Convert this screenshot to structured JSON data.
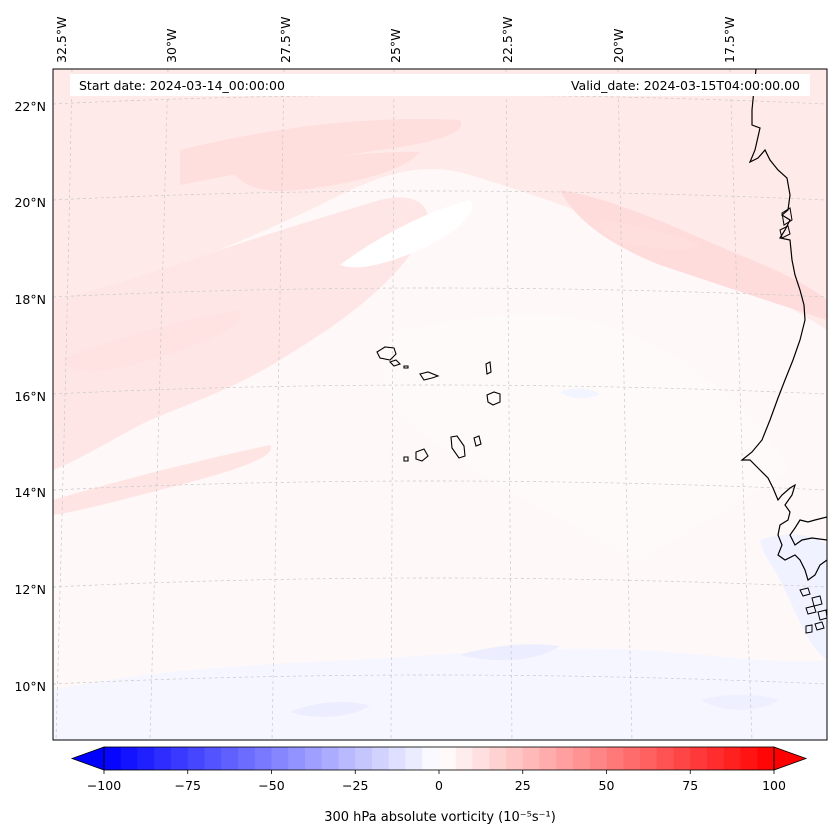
{
  "header": {
    "start_label": "Start date: 2024-03-14_00:00:00",
    "valid_label": "Valid_date: 2024-03-15T04:00:00.00"
  },
  "map": {
    "lon_labels": [
      "32.5°W",
      "30°W",
      "27.5°W",
      "25°W",
      "22.5°W",
      "20°W",
      "17.5°W"
    ],
    "lat_labels": [
      "22°N",
      "20°N",
      "18°N",
      "16°N",
      "14°N",
      "12°N",
      "10°N"
    ],
    "grid": true
  },
  "colorbar": {
    "label": "300 hPa absolute vorticity (10⁻⁵s⁻¹)",
    "ticks": [
      "−100",
      "−75",
      "−50",
      "−25",
      "0",
      "25",
      "50",
      "75",
      "100"
    ],
    "range": [
      -100,
      100
    ],
    "step": 5,
    "colors": {
      "neg": "#0000ff",
      "mid": "#ffffff",
      "pos": "#ff0000"
    }
  }
}
